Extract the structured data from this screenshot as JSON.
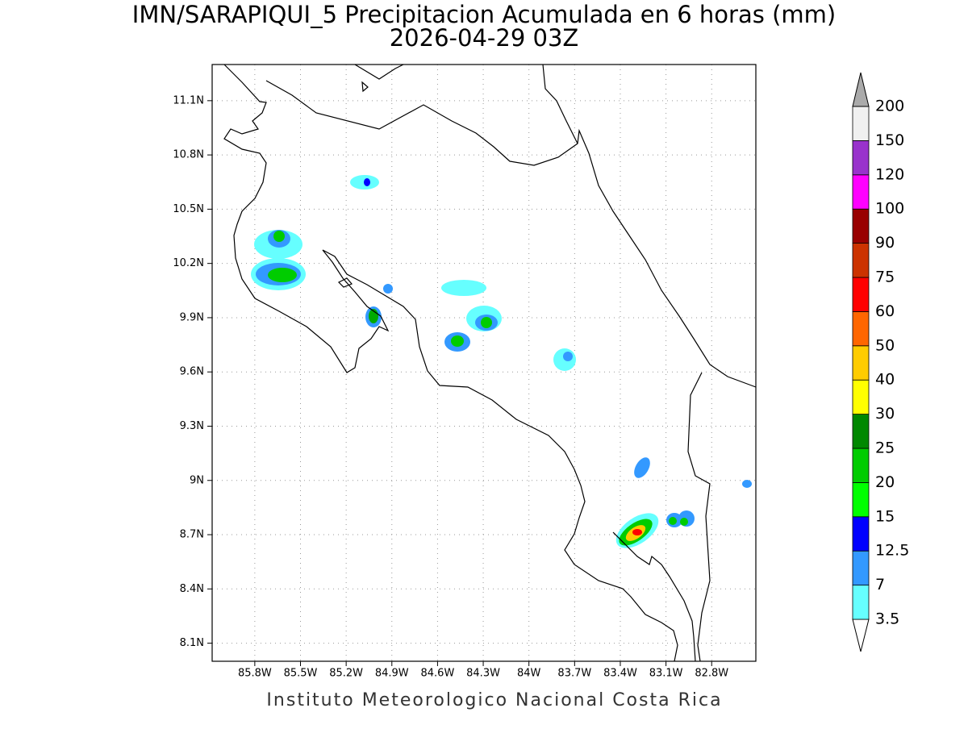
{
  "title": "IMN/SARAPIQUI_5 Precipitacion Acumulada en 6 horas (mm)",
  "subtitle": "2026-04-29 03Z",
  "footer": "Instituto Meteorologico Nacional Costa Rica",
  "map": {
    "xlim": [
      -86.08,
      -82.51
    ],
    "ylim": [
      8.0,
      11.3
    ],
    "xticks": [
      {
        "value": -85.8,
        "label": "85.8W"
      },
      {
        "value": -85.5,
        "label": "85.5W"
      },
      {
        "value": -85.2,
        "label": "85.2W"
      },
      {
        "value": -84.9,
        "label": "84.9W"
      },
      {
        "value": -84.6,
        "label": "84.6W"
      },
      {
        "value": -84.3,
        "label": "84.3W"
      },
      {
        "value": -84.0,
        "label": "84W"
      },
      {
        "value": -83.7,
        "label": "83.7W"
      },
      {
        "value": -83.4,
        "label": "83.4W"
      },
      {
        "value": -83.1,
        "label": "83.1W"
      },
      {
        "value": -82.8,
        "label": "82.8W"
      }
    ],
    "yticks": [
      {
        "value": 8.1,
        "label": "8.1N"
      },
      {
        "value": 8.4,
        "label": "8.4N"
      },
      {
        "value": 8.7,
        "label": "8.7N"
      },
      {
        "value": 9.0,
        "label": "9N"
      },
      {
        "value": 9.3,
        "label": "9.3N"
      },
      {
        "value": 9.6,
        "label": "9.6N"
      },
      {
        "value": 9.9,
        "label": "9.9N"
      },
      {
        "value": 10.2,
        "label": "10.2N"
      },
      {
        "value": 10.5,
        "label": "10.5N"
      },
      {
        "value": 10.8,
        "label": "10.8N"
      },
      {
        "value": 11.1,
        "label": "11.1N"
      }
    ],
    "grid": true
  },
  "colorbar": {
    "levels": [
      3.5,
      7,
      12.5,
      15,
      20,
      25,
      30,
      40,
      50,
      60,
      75,
      90,
      100,
      120,
      150,
      200
    ],
    "colors": [
      "#ffffff",
      "#66ffff",
      "#3399ff",
      "#0000ff",
      "#00ff00",
      "#00cc00",
      "#008800",
      "#ffff00",
      "#ffcc00",
      "#ff6600",
      "#ff0000",
      "#cc3300",
      "#990000",
      "#ff00ff",
      "#9933cc",
      "#f0f0f0",
      "#aaaaaa"
    ]
  }
}
